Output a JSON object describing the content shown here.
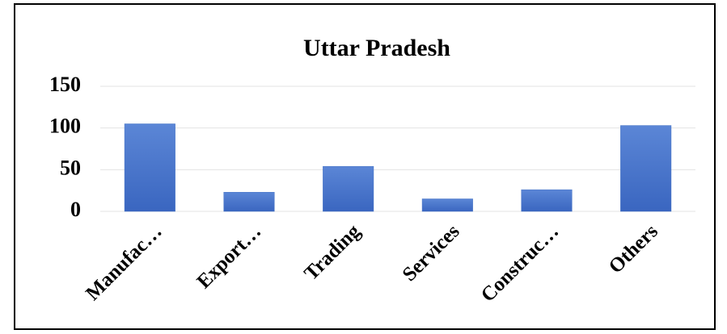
{
  "chart_data": {
    "type": "bar",
    "title": "Uttar Pradesh",
    "categories": [
      "Manufac…",
      "Export…",
      "Trading",
      "Services",
      "Construc…",
      "Others"
    ],
    "values": [
      105,
      23,
      54,
      15,
      26,
      103
    ],
    "color": "#4472c4",
    "ylim": [
      0,
      150
    ],
    "yticks": [
      0,
      50,
      100,
      150
    ],
    "grid": true
  }
}
